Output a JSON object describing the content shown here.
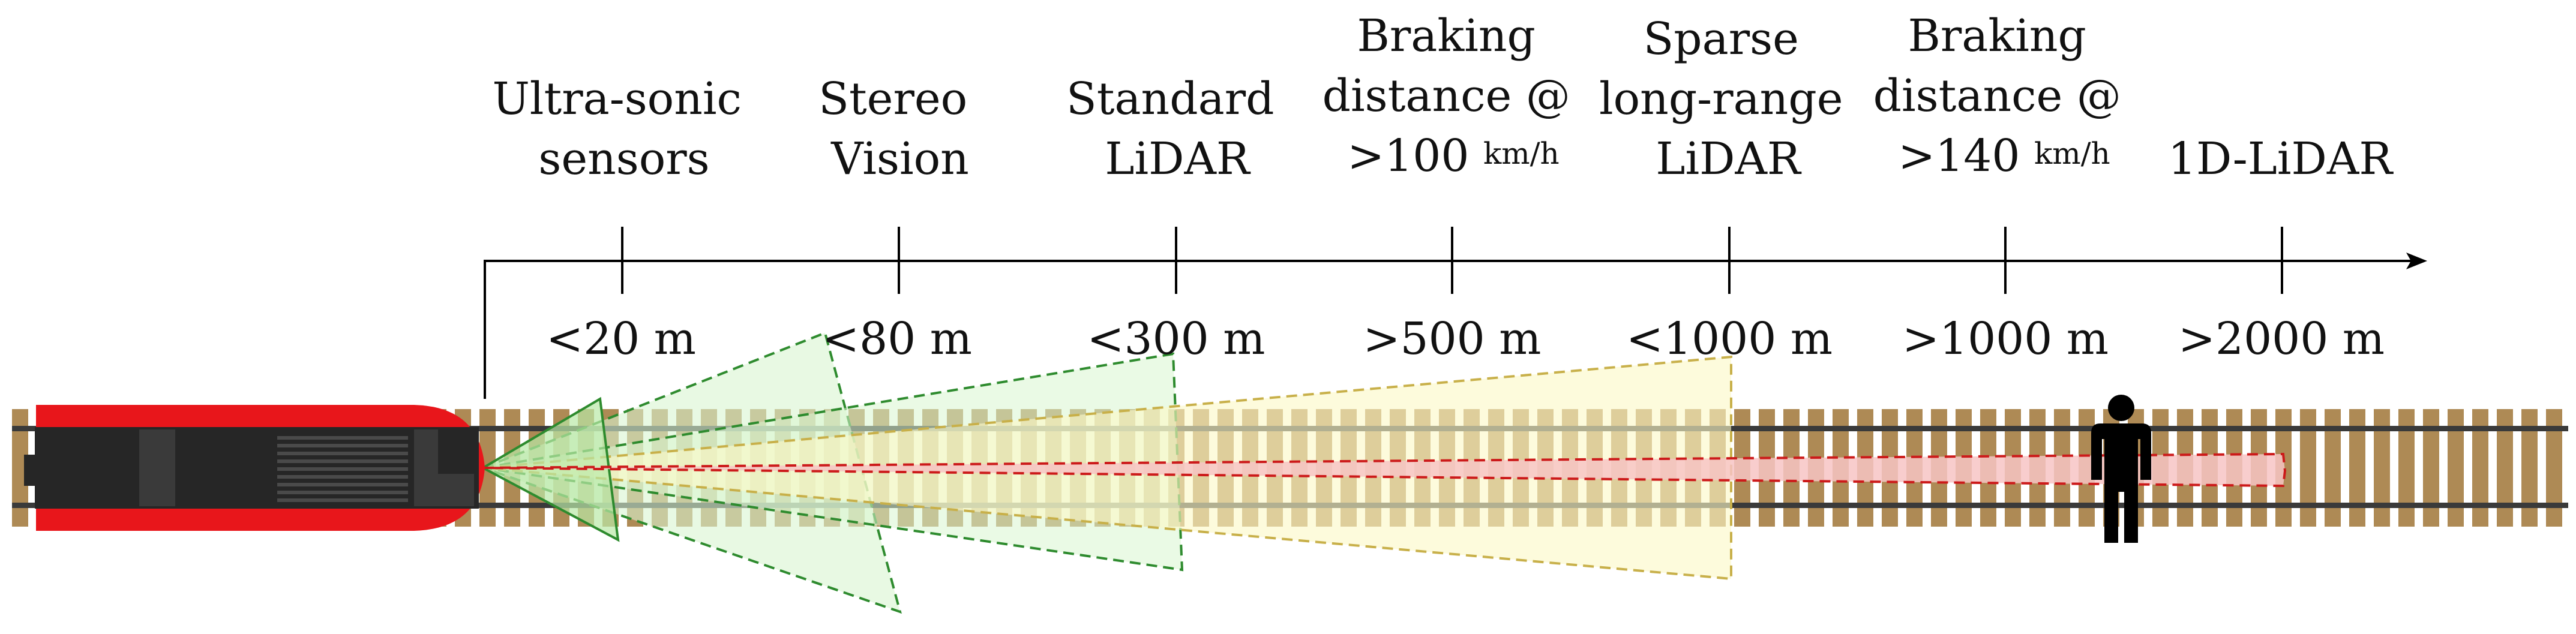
{
  "sensors": [
    {
      "lines": [
        "Ultra-sonic",
        "sensors"
      ],
      "distance": "<20 m"
    },
    {
      "lines": [
        "Stereo",
        "Vision"
      ],
      "distance": "<80 m"
    },
    {
      "lines": [
        "Standard",
        "LiDAR"
      ],
      "distance": "<300 m"
    },
    {
      "lines": [
        "Braking",
        "distance @",
        ">100 "
      ],
      "unit": "km/h",
      "distance": ">500 m"
    },
    {
      "lines": [
        "Sparse",
        "long-range",
        "LiDAR"
      ],
      "distance": "<1000 m"
    },
    {
      "lines": [
        "Braking",
        "distance @",
        ">140 "
      ],
      "unit": "km/h",
      "distance": ">1000 m"
    },
    {
      "lines": [
        "1D-LiDAR"
      ],
      "distance": ">2000 m"
    }
  ],
  "colors": {
    "train_red": "#e8161b",
    "train_body": "#262626",
    "sleeper": "#ae8a55",
    "rail": "#3a3a3a",
    "ultrasonic_fill": "#b9e8a6",
    "ultrasonic_stroke": "#2e8b2e",
    "stereo_fill": "#d8f5d0",
    "stereo_stroke": "#2e8b2e",
    "lidar_fill": "#fbf9c6",
    "lidar_stroke": "#c8b04a",
    "onedlidar_fill": "#f7c4c4",
    "onedlidar_stroke": "#cc1a1a",
    "person": "#000000"
  },
  "icons": [
    "train-icon",
    "person-icon",
    "axis-arrow-icon"
  ]
}
